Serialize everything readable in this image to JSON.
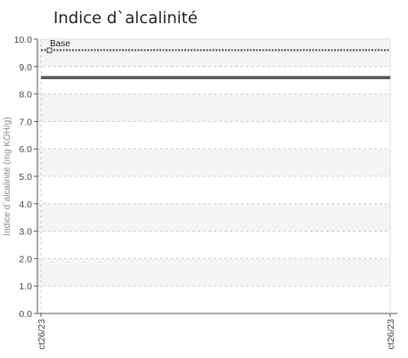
{
  "chart_data": {
    "type": "line",
    "title": "Indice d`alcalinité",
    "ylabel": "Indice d`alcalinité (mg KOH/g)",
    "xlabel": "",
    "ylim": [
      0,
      10
    ],
    "yticks": [
      "0.0",
      "1.0",
      "2.0",
      "3.0",
      "4.0",
      "5.0",
      "6.0",
      "7.0",
      "8.0",
      "9.0",
      "10.0"
    ],
    "x_ticks": [
      "ct26/23",
      "ct26/23"
    ],
    "grid": true,
    "legend_position": "top-left",
    "series": [
      {
        "name": "Base",
        "values": [
          9.6,
          9.6
        ],
        "style": "dotted",
        "color": "#555555"
      },
      {
        "values": [
          8.6,
          8.6
        ],
        "style": "solid",
        "color": "#555555"
      }
    ]
  }
}
